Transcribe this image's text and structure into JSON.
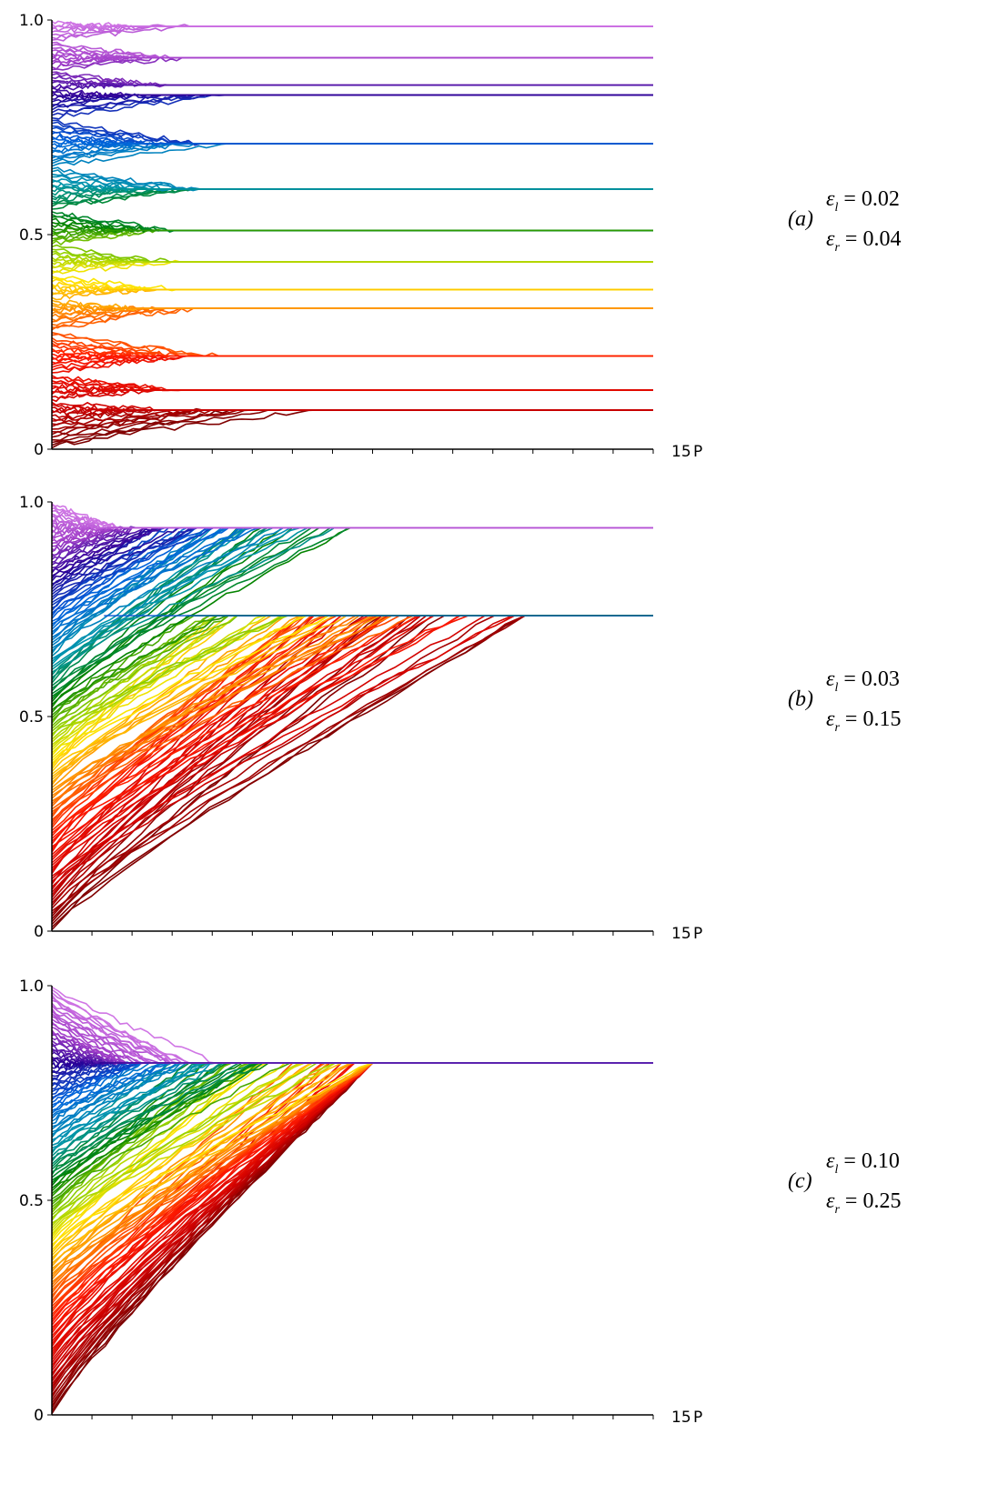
{
  "chart_data": [
    {
      "type": "line",
      "panel_label": "(a)",
      "eps_l_text": "ε_l = 0.02",
      "eps_r_text": "ε_r = 0.04",
      "eps_l_value": "0.02",
      "eps_r_value": "0.04",
      "x_end_label": "15",
      "x_unit_label": "P",
      "y_tick_labels": [
        "0",
        "0.5",
        "1.0"
      ],
      "xlim": [
        0,
        15
      ],
      "ylim": [
        0,
        1
      ],
      "n_minor_ticks": 15,
      "legend": "none",
      "grid": false,
      "clusters": [
        0.985,
        0.912,
        0.848,
        0.825,
        0.712,
        0.606,
        0.51,
        0.436,
        0.372,
        0.328,
        0.217,
        0.138,
        0.091
      ],
      "cluster_color_ranks": [
        0.985,
        0.912,
        0.848,
        0.825,
        0.712,
        0.606,
        0.51,
        0.436,
        0.372,
        0.328,
        0.217,
        0.138,
        0.091
      ],
      "convergence_time": 6.5,
      "x_spread_max": 9.0,
      "initial_pattern": "uniform",
      "linear_spread": 0
    },
    {
      "type": "line",
      "panel_label": "(b)",
      "eps_l_text": "ε_l = 0.03",
      "eps_r_text": "ε_r = 0.15",
      "eps_l_value": "0.03",
      "eps_r_value": "0.15",
      "x_end_label": "15",
      "x_unit_label": "P",
      "y_tick_labels": [
        "0",
        "0.5",
        "1.0"
      ],
      "xlim": [
        0,
        15
      ],
      "ylim": [
        0,
        1
      ],
      "n_minor_ticks": 15,
      "legend": "none",
      "grid": false,
      "clusters": [
        0.94,
        0.735
      ],
      "cluster_boundary": 0.52,
      "convergence_time": 6.5,
      "x_spread_max": 11.8,
      "initial_pattern": "drift",
      "linear_spread": 1
    },
    {
      "type": "line",
      "panel_label": "(c)",
      "eps_l_text": "ε_l = 0.10",
      "eps_r_text": "ε_r = 0.25",
      "eps_l_value": "0.10",
      "eps_r_value": "0.25",
      "x_end_label": "15",
      "x_unit_label": "P",
      "y_tick_labels": [
        "0",
        "0.5",
        "1.0"
      ],
      "xlim": [
        0,
        15
      ],
      "ylim": [
        0,
        1
      ],
      "n_minor_ticks": 15,
      "legend": "none",
      "grid": false,
      "clusters": [
        0.82
      ],
      "convergence_time": 6.0,
      "x_spread_max": 8.0,
      "initial_pattern": "drift",
      "linear_spread": 1
    }
  ]
}
